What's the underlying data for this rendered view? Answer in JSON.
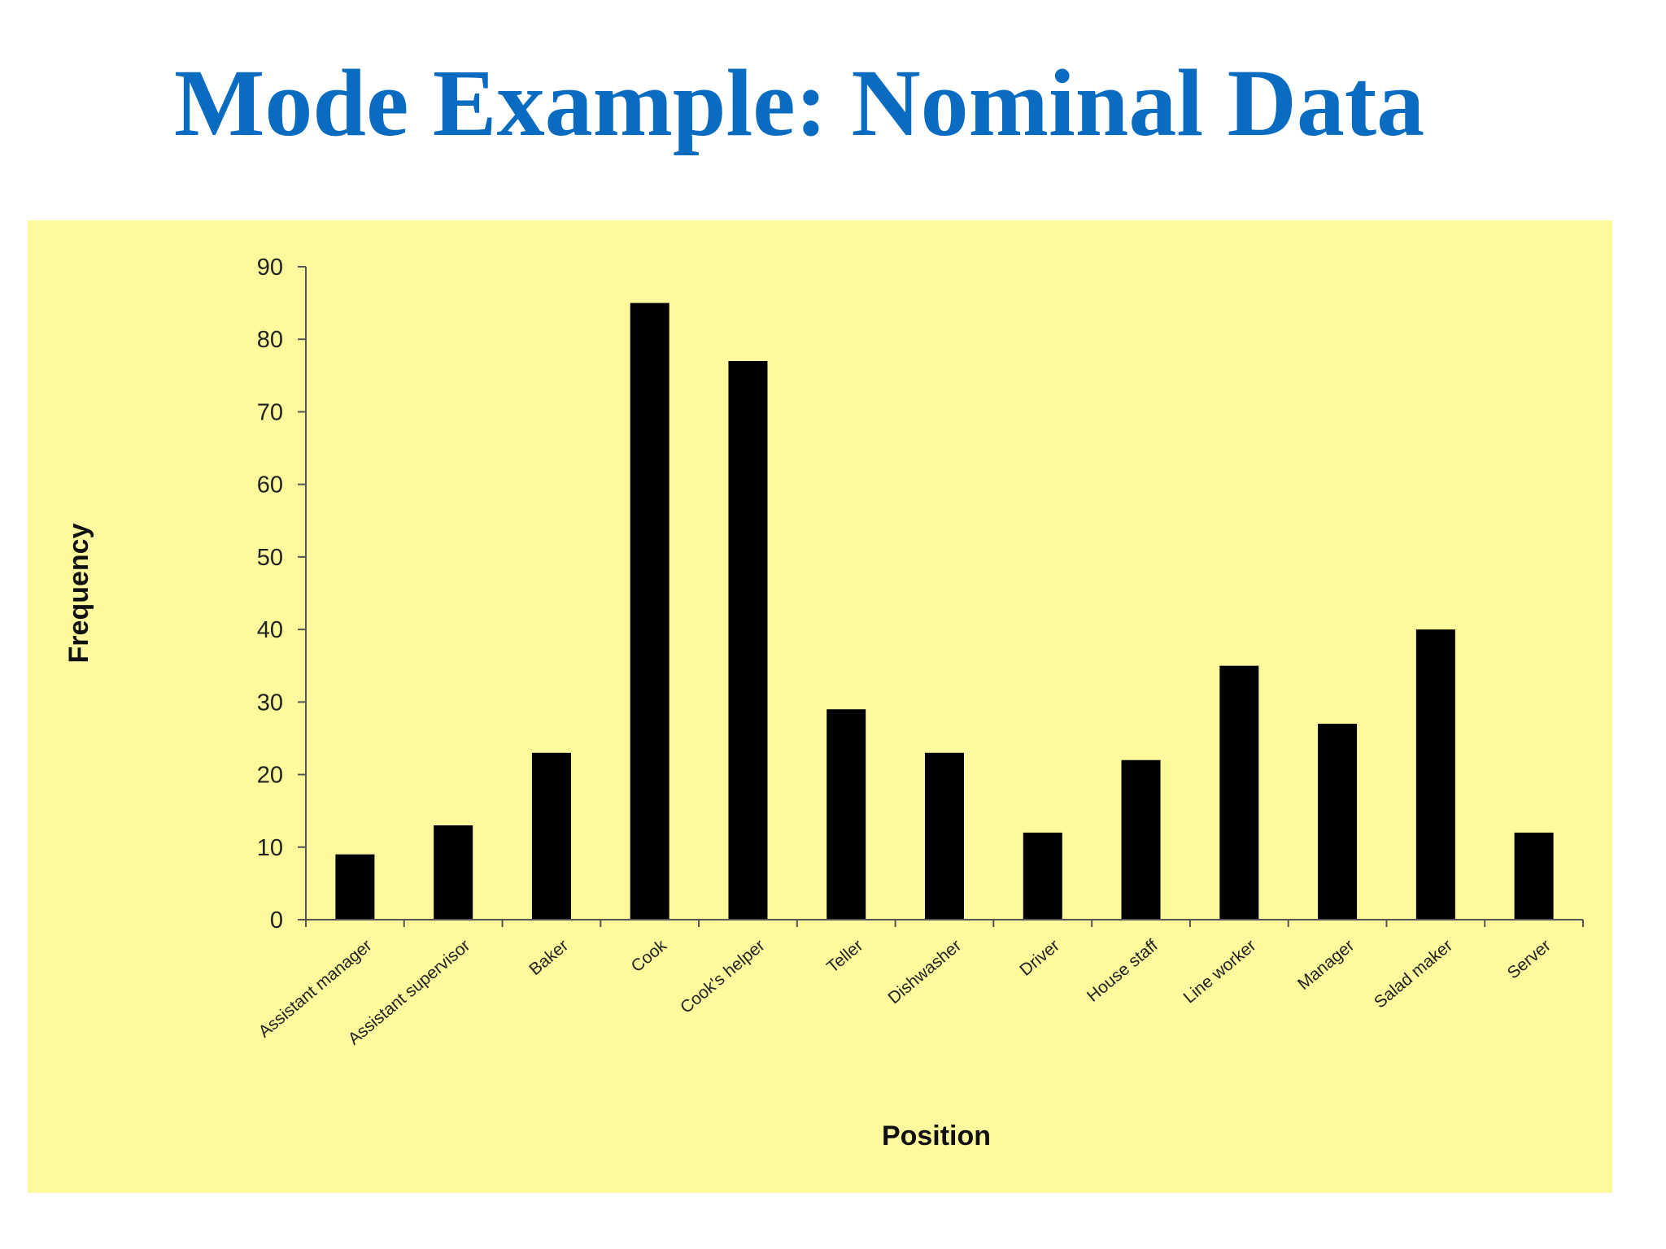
{
  "slide": {
    "title": "Mode Example: Nominal Data"
  },
  "colors": {
    "title": "#0a6cc1",
    "panel_background": "#fdfa9e",
    "bars": "#000000",
    "axis": "#555555"
  },
  "chart_data": {
    "type": "bar",
    "title": "",
    "xlabel": "Position",
    "ylabel": "Frequency",
    "categories": [
      "Assistant manager",
      "Assistant supervisor",
      "Baker",
      "Cook",
      "Cook's helper",
      "Teller",
      "Dishwasher",
      "Driver",
      "House staff",
      "Line worker",
      "Manager",
      "Salad maker",
      "Server"
    ],
    "values": [
      9,
      13,
      23,
      85,
      77,
      29,
      23,
      12,
      22,
      35,
      27,
      40,
      12
    ],
    "ylim": [
      0,
      90
    ],
    "yticks": [
      "0",
      "10",
      "20",
      "30",
      "40",
      "50",
      "60",
      "70",
      "80",
      "90"
    ],
    "grid": false,
    "legend": "none"
  }
}
